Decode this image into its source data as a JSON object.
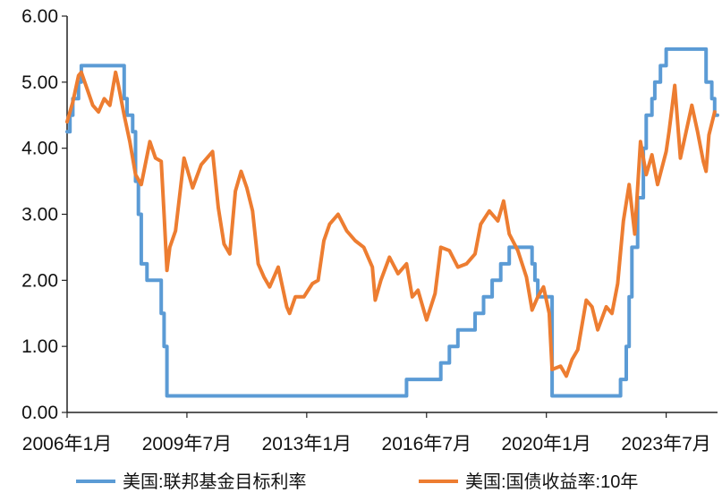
{
  "chart_data": {
    "type": "line",
    "title": "",
    "xlabel": "",
    "ylabel": "",
    "x_range": [
      "2006-01",
      "2024-12"
    ],
    "ylim": [
      0,
      6
    ],
    "y_ticks": [
      "0.00",
      "1.00",
      "2.00",
      "3.00",
      "4.00",
      "5.00",
      "6.00"
    ],
    "x_ticks": [
      {
        "label": "2006年1月",
        "date": "2006-01"
      },
      {
        "label": "2009年7月",
        "date": "2009-07"
      },
      {
        "label": "2013年1月",
        "date": "2013-01"
      },
      {
        "label": "2016年7月",
        "date": "2016-07"
      },
      {
        "label": "2020年1月",
        "date": "2020-01"
      },
      {
        "label": "2023年7月",
        "date": "2023-07"
      }
    ],
    "grid": false,
    "legend_position": "bottom",
    "series": [
      {
        "name": "美国:联邦基金目标利率",
        "color": "#5B9BD5",
        "style": "step",
        "points": [
          [
            "2006-01",
            4.25
          ],
          [
            "2006-02",
            4.5
          ],
          [
            "2006-03",
            4.75
          ],
          [
            "2006-05",
            5.0
          ],
          [
            "2006-06",
            5.25
          ],
          [
            "2007-09",
            4.75
          ],
          [
            "2007-10",
            4.5
          ],
          [
            "2007-12",
            4.25
          ],
          [
            "2008-01",
            3.5
          ],
          [
            "2008-02",
            3.0
          ],
          [
            "2008-03",
            2.25
          ],
          [
            "2008-05",
            2.0
          ],
          [
            "2008-10",
            1.5
          ],
          [
            "2008-11",
            1.0
          ],
          [
            "2008-12",
            0.25
          ],
          [
            "2015-12",
            0.5
          ],
          [
            "2016-12",
            0.75
          ],
          [
            "2017-03",
            1.0
          ],
          [
            "2017-06",
            1.25
          ],
          [
            "2017-12",
            1.5
          ],
          [
            "2018-03",
            1.75
          ],
          [
            "2018-06",
            2.0
          ],
          [
            "2018-09",
            2.25
          ],
          [
            "2018-12",
            2.5
          ],
          [
            "2019-08",
            2.25
          ],
          [
            "2019-09",
            2.0
          ],
          [
            "2019-10",
            1.75
          ],
          [
            "2020-03",
            0.25
          ],
          [
            "2022-03",
            0.5
          ],
          [
            "2022-05",
            1.0
          ],
          [
            "2022-06",
            1.75
          ],
          [
            "2022-07",
            2.5
          ],
          [
            "2022-09",
            3.25
          ],
          [
            "2022-11",
            4.0
          ],
          [
            "2022-12",
            4.5
          ],
          [
            "2023-02",
            4.75
          ],
          [
            "2023-03",
            5.0
          ],
          [
            "2023-05",
            5.25
          ],
          [
            "2023-07",
            5.5
          ],
          [
            "2024-09",
            5.0
          ],
          [
            "2024-11",
            4.75
          ],
          [
            "2024-12",
            4.5
          ]
        ]
      },
      {
        "name": "美国:国债收益率:10年",
        "color": "#ED7D31",
        "style": "line",
        "points": [
          [
            "2006-01",
            4.4
          ],
          [
            "2006-03",
            4.7
          ],
          [
            "2006-05",
            5.1
          ],
          [
            "2006-06",
            5.15
          ],
          [
            "2006-08",
            4.9
          ],
          [
            "2006-10",
            4.65
          ],
          [
            "2006-12",
            4.55
          ],
          [
            "2007-02",
            4.75
          ],
          [
            "2007-04",
            4.65
          ],
          [
            "2007-06",
            5.15
          ],
          [
            "2007-07",
            4.95
          ],
          [
            "2007-09",
            4.5
          ],
          [
            "2007-11",
            4.1
          ],
          [
            "2008-01",
            3.6
          ],
          [
            "2008-03",
            3.45
          ],
          [
            "2008-06",
            4.1
          ],
          [
            "2008-08",
            3.85
          ],
          [
            "2008-10",
            3.8
          ],
          [
            "2008-11",
            3.0
          ],
          [
            "2008-12",
            2.15
          ],
          [
            "2009-01",
            2.5
          ],
          [
            "2009-03",
            2.75
          ],
          [
            "2009-06",
            3.85
          ],
          [
            "2009-09",
            3.4
          ],
          [
            "2009-12",
            3.75
          ],
          [
            "2010-04",
            3.95
          ],
          [
            "2010-06",
            3.1
          ],
          [
            "2010-08",
            2.55
          ],
          [
            "2010-10",
            2.4
          ],
          [
            "2010-12",
            3.35
          ],
          [
            "2011-02",
            3.65
          ],
          [
            "2011-04",
            3.4
          ],
          [
            "2011-06",
            3.05
          ],
          [
            "2011-08",
            2.25
          ],
          [
            "2011-10",
            2.05
          ],
          [
            "2011-12",
            1.9
          ],
          [
            "2012-03",
            2.2
          ],
          [
            "2012-06",
            1.6
          ],
          [
            "2012-07",
            1.5
          ],
          [
            "2012-09",
            1.75
          ],
          [
            "2012-12",
            1.75
          ],
          [
            "2013-03",
            1.95
          ],
          [
            "2013-05",
            2.0
          ],
          [
            "2013-07",
            2.6
          ],
          [
            "2013-09",
            2.85
          ],
          [
            "2013-12",
            3.0
          ],
          [
            "2014-03",
            2.75
          ],
          [
            "2014-06",
            2.6
          ],
          [
            "2014-09",
            2.5
          ],
          [
            "2014-12",
            2.2
          ],
          [
            "2015-01",
            1.7
          ],
          [
            "2015-03",
            2.0
          ],
          [
            "2015-06",
            2.35
          ],
          [
            "2015-09",
            2.1
          ],
          [
            "2015-12",
            2.25
          ],
          [
            "2016-02",
            1.75
          ],
          [
            "2016-04",
            1.85
          ],
          [
            "2016-07",
            1.4
          ],
          [
            "2016-10",
            1.8
          ],
          [
            "2016-12",
            2.5
          ],
          [
            "2017-03",
            2.45
          ],
          [
            "2017-06",
            2.2
          ],
          [
            "2017-09",
            2.25
          ],
          [
            "2017-12",
            2.4
          ],
          [
            "2018-02",
            2.85
          ],
          [
            "2018-05",
            3.05
          ],
          [
            "2018-08",
            2.9
          ],
          [
            "2018-10",
            3.2
          ],
          [
            "2018-12",
            2.7
          ],
          [
            "2019-03",
            2.45
          ],
          [
            "2019-06",
            2.05
          ],
          [
            "2019-08",
            1.55
          ],
          [
            "2019-10",
            1.75
          ],
          [
            "2019-12",
            1.9
          ],
          [
            "2020-02",
            1.5
          ],
          [
            "2020-03",
            0.65
          ],
          [
            "2020-06",
            0.7
          ],
          [
            "2020-08",
            0.55
          ],
          [
            "2020-10",
            0.8
          ],
          [
            "2020-12",
            0.95
          ],
          [
            "2021-03",
            1.7
          ],
          [
            "2021-05",
            1.6
          ],
          [
            "2021-07",
            1.25
          ],
          [
            "2021-10",
            1.6
          ],
          [
            "2021-12",
            1.5
          ],
          [
            "2022-02",
            1.95
          ],
          [
            "2022-04",
            2.9
          ],
          [
            "2022-06",
            3.45
          ],
          [
            "2022-08",
            2.7
          ],
          [
            "2022-10",
            4.1
          ],
          [
            "2022-12",
            3.6
          ],
          [
            "2023-02",
            3.9
          ],
          [
            "2023-04",
            3.45
          ],
          [
            "2023-07",
            3.95
          ],
          [
            "2023-08",
            4.25
          ],
          [
            "2023-10",
            4.95
          ],
          [
            "2023-12",
            3.85
          ],
          [
            "2024-02",
            4.25
          ],
          [
            "2024-04",
            4.65
          ],
          [
            "2024-06",
            4.25
          ],
          [
            "2024-08",
            3.8
          ],
          [
            "2024-09",
            3.65
          ],
          [
            "2024-10",
            4.2
          ],
          [
            "2024-12",
            4.55
          ]
        ]
      }
    ]
  }
}
